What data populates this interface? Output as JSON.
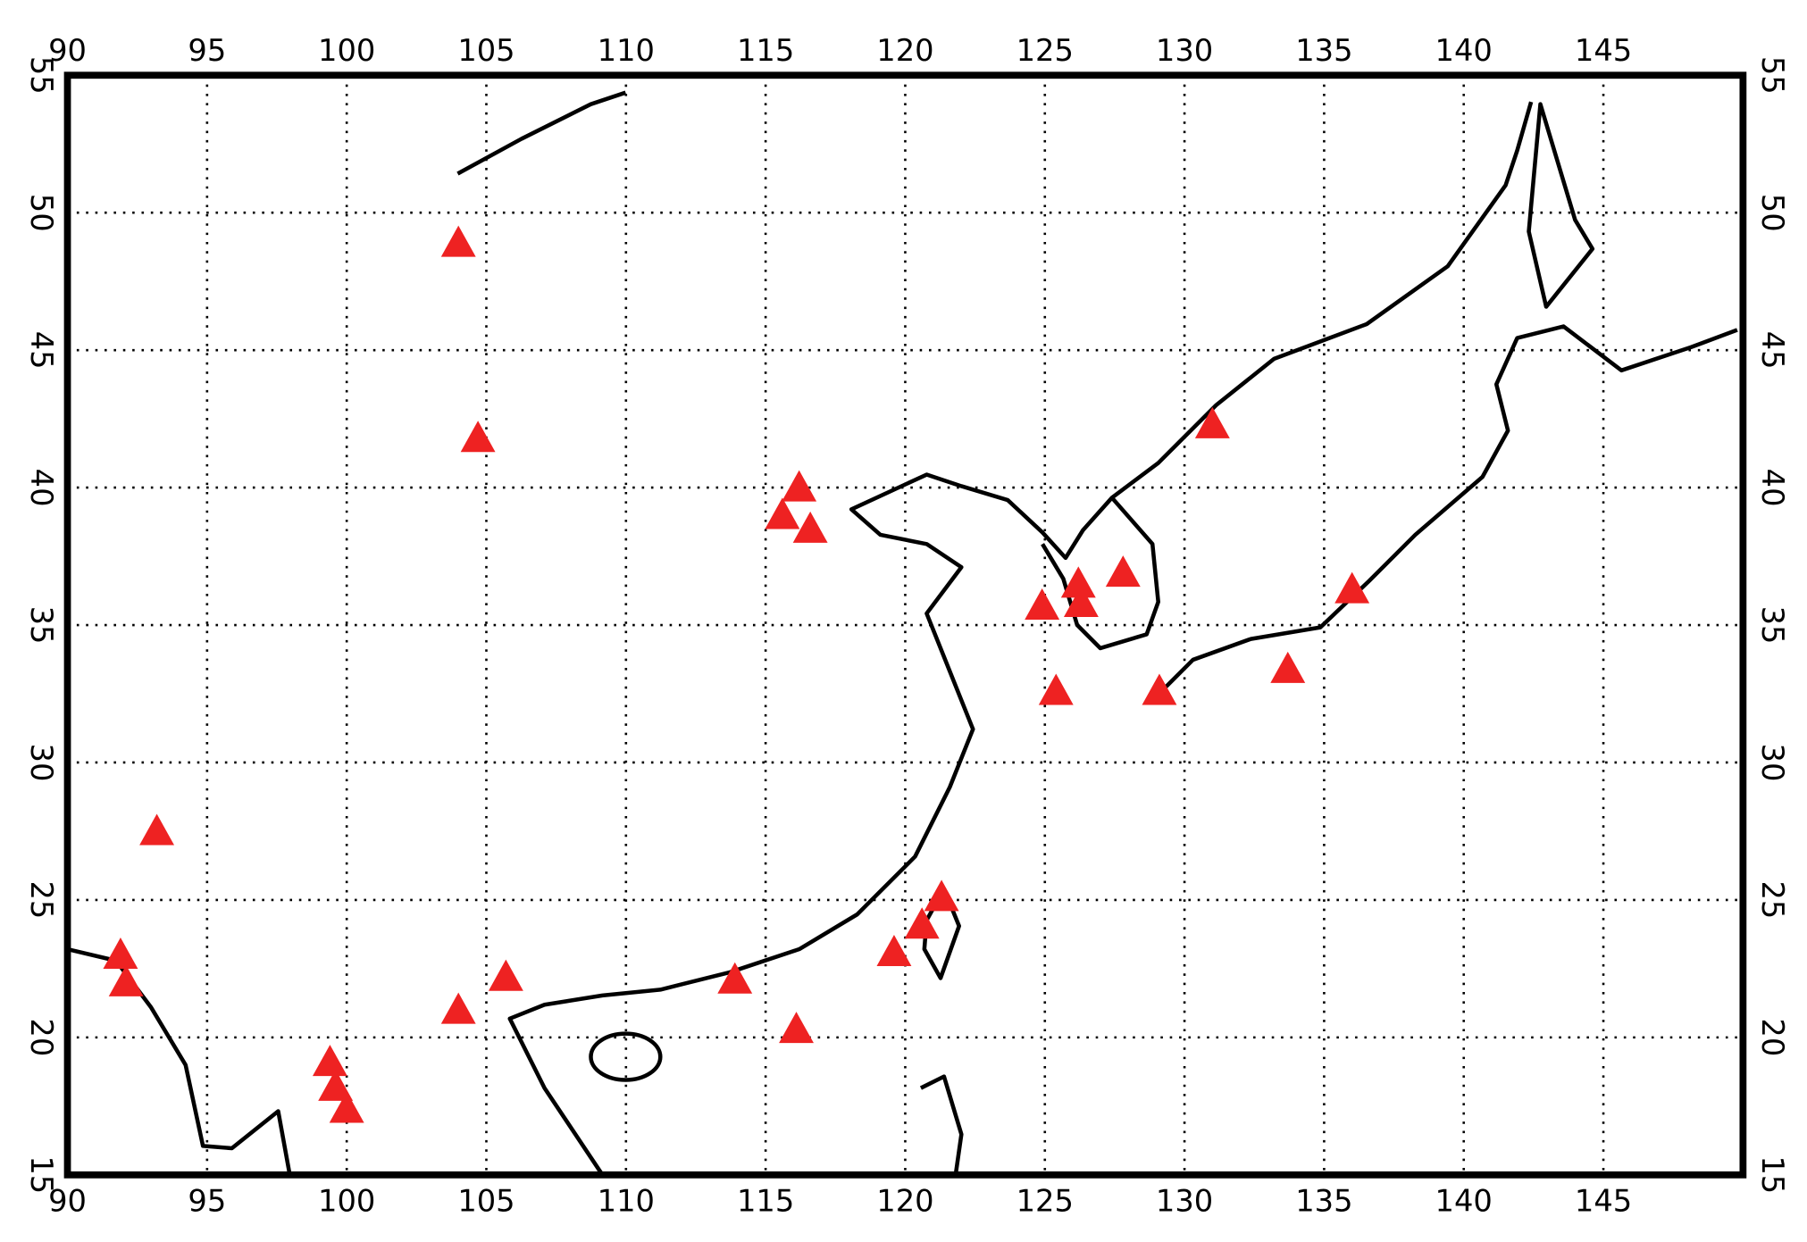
{
  "chart_data": {
    "type": "scatter",
    "x": [
      104.0,
      104.7,
      116.2,
      115.6,
      116.6,
      93.2,
      91.9,
      92.1,
      104.0,
      105.7,
      99.4,
      99.6,
      100.0,
      113.9,
      116.1,
      119.6,
      120.6,
      121.3,
      124.9,
      126.2,
      126.3,
      127.8,
      125.4,
      129.1,
      131.0,
      136.0,
      133.7
    ],
    "y": [
      48.9,
      41.8,
      40.0,
      39.0,
      38.5,
      27.5,
      23.0,
      22.0,
      21.0,
      22.2,
      19.1,
      18.2,
      17.4,
      22.1,
      20.3,
      23.1,
      24.1,
      25.1,
      35.7,
      36.5,
      35.8,
      36.9,
      32.6,
      32.6,
      42.3,
      36.3,
      33.4
    ],
    "color": "#ee2222",
    "xlim": [
      90,
      150
    ],
    "ylim": [
      15,
      55
    ],
    "xticks": [
      90,
      95,
      100,
      105,
      110,
      115,
      120,
      125,
      130,
      135,
      140,
      145
    ],
    "yticks": [
      15,
      20,
      25,
      30,
      35,
      40,
      45,
      50,
      55
    ],
    "grid": true
  }
}
